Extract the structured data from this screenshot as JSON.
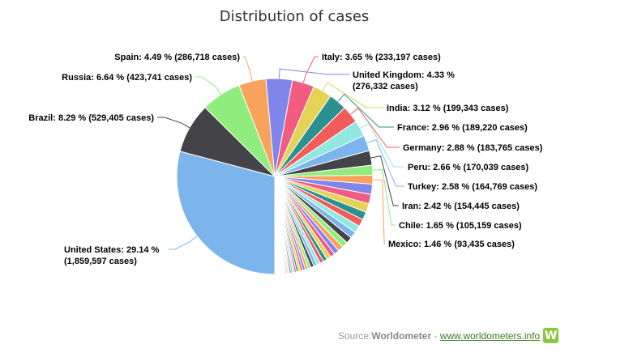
{
  "chart_data": {
    "type": "pie",
    "title": "Distribution of cases",
    "slices": [
      {
        "label": "United States: 29.14 % (1,859,597 cases)",
        "value": 29.14,
        "color": "#7cb5ec"
      },
      {
        "label": "Brazil: 8.29 % (529,405 cases)",
        "value": 8.29,
        "color": "#434348"
      },
      {
        "label": "Russia: 6.64 % (423,741 cases)",
        "value": 6.64,
        "color": "#90ed7d"
      },
      {
        "label": "Spain: 4.49 % (286,718 cases)",
        "value": 4.49,
        "color": "#f7a35c"
      },
      {
        "label": "United Kingdom: 4.33 % (276,332 cases)",
        "value": 4.33,
        "color": "#8085e9"
      },
      {
        "label": "Italy: 3.65 % (233,197 cases)",
        "value": 3.65,
        "color": "#f15c80"
      },
      {
        "label": "India: 3.12 % (199,343 cases)",
        "value": 3.12,
        "color": "#e4d354"
      },
      {
        "label": "France: 2.96 % (189,220 cases)",
        "value": 2.96,
        "color": "#2b908f"
      },
      {
        "label": "Germany: 2.88 % (183,765 cases)",
        "value": 2.88,
        "color": "#f45b5b"
      },
      {
        "label": "Peru: 2.66 % (170,039 cases)",
        "value": 2.66,
        "color": "#91e8e1"
      },
      {
        "label": "Turkey: 2.58 % (164,769 cases)",
        "value": 2.58,
        "color": "#7cb5ec"
      },
      {
        "label": "Iran: 2.42 % (154,445 cases)",
        "value": 2.42,
        "color": "#434348"
      },
      {
        "label": "Chile: 1.65 % (105,159 cases)",
        "value": 1.65,
        "color": "#90ed7d"
      },
      {
        "label": "Mexico: 1.46 % (93,435 cases)",
        "value": 1.46,
        "color": "#f7a35c"
      }
    ],
    "other_slices": [
      1.3,
      1.2,
      1.1,
      1.0,
      0.95,
      0.9,
      0.85,
      0.8,
      0.75,
      0.7,
      0.65,
      0.6,
      0.55,
      0.5,
      0.48,
      0.45,
      0.42,
      0.4,
      0.38,
      0.35,
      0.33,
      0.3,
      0.28,
      0.26,
      0.24,
      0.22,
      0.2,
      0.18,
      0.16,
      0.15,
      0.14,
      0.13,
      0.12,
      0.11,
      0.1,
      0.1,
      0.09,
      0.09,
      0.08,
      0.08,
      0.07,
      0.07,
      0.06,
      0.06,
      0.05,
      0.05,
      0.05,
      0.04,
      0.04,
      0.04
    ],
    "other_colors": [
      "#8085e9",
      "#f15c80",
      "#e4d354",
      "#2b908f",
      "#f45b5b",
      "#91e8e1",
      "#7cb5ec",
      "#434348",
      "#90ed7d",
      "#f7a35c"
    ],
    "legend": "none"
  },
  "source": {
    "prefix": "Source: ",
    "name": "Worldometer",
    "separator": " - ",
    "link": "www.worldometers.info",
    "logo_letter": "W",
    "logo_color": "#8dc63f"
  }
}
